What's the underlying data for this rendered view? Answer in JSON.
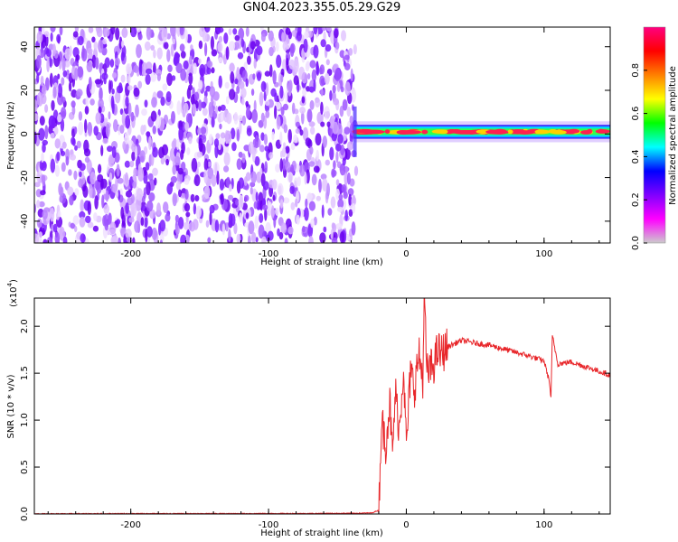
{
  "title": "GN04.2023.355.05.29.G29",
  "chart_data": [
    {
      "type": "heatmap",
      "name": "spectrogram",
      "xlabel": "Height of straight line (km)",
      "ylabel": "Frequency (Hz)",
      "xlim": [
        -270,
        148
      ],
      "ylim": [
        -50,
        49
      ],
      "x_ticks": [
        -200,
        -100,
        0,
        100
      ],
      "y_ticks": [
        -40,
        -20,
        0,
        20,
        40
      ],
      "noise_region_x": [
        -270,
        -38
      ],
      "signal_band_center_hz": 1,
      "signal_band_halfwidth_hz": 2,
      "colorbar": {
        "label": "Normalized spectral amplitude",
        "range": [
          0.0,
          1.0
        ],
        "ticks": [
          0.0,
          0.2,
          0.4,
          0.6,
          0.8
        ],
        "colors": [
          "#cccccc",
          "#ff00ff",
          "#8000ff",
          "#0000ff",
          "#00ffff",
          "#00ff00",
          "#ffff00",
          "#ff8000",
          "#ff0000",
          "#ff0080"
        ]
      }
    },
    {
      "type": "line",
      "name": "snr",
      "xlabel": "Height of straight line (km)",
      "ylabel": "SNR (10 * v/v)",
      "multiplier": "(x10",
      "multiplier_exp": "4",
      "xlim": [
        -270,
        148
      ],
      "ylim": [
        0.0,
        2.3
      ],
      "x_ticks": [
        -200,
        -100,
        0,
        100
      ],
      "y_ticks": [
        0.0,
        0.5,
        1.0,
        1.5,
        2.0
      ],
      "y_tick_labels": [
        "0.0",
        "0.5",
        "1.0",
        "1.5",
        "2.0"
      ],
      "color": "#e8262a",
      "series": [
        {
          "x": [
            -270,
            -240,
            -200,
            -150,
            -100,
            -60,
            -35,
            -25,
            -20,
            -18,
            -15,
            -12,
            -10,
            -8,
            -5,
            -2,
            0,
            3,
            6,
            9,
            12,
            13,
            15,
            18,
            20,
            23,
            25,
            30,
            40,
            50,
            60,
            70,
            80,
            90,
            100,
            104,
            105,
            106,
            110,
            120,
            130,
            140,
            148
          ],
          "y": [
            0.002,
            0.003,
            0.004,
            0.004,
            0.005,
            0.006,
            0.008,
            0.012,
            0.04,
            1.0,
            0.75,
            1.2,
            0.6,
            1.3,
            0.9,
            1.6,
            0.7,
            1.5,
            1.35,
            1.7,
            1.45,
            2.3,
            1.5,
            1.55,
            1.6,
            1.75,
            1.7,
            1.78,
            1.85,
            1.82,
            1.8,
            1.76,
            1.72,
            1.68,
            1.63,
            1.4,
            1.22,
            1.9,
            1.6,
            1.62,
            1.57,
            1.52,
            1.48
          ]
        }
      ]
    }
  ]
}
